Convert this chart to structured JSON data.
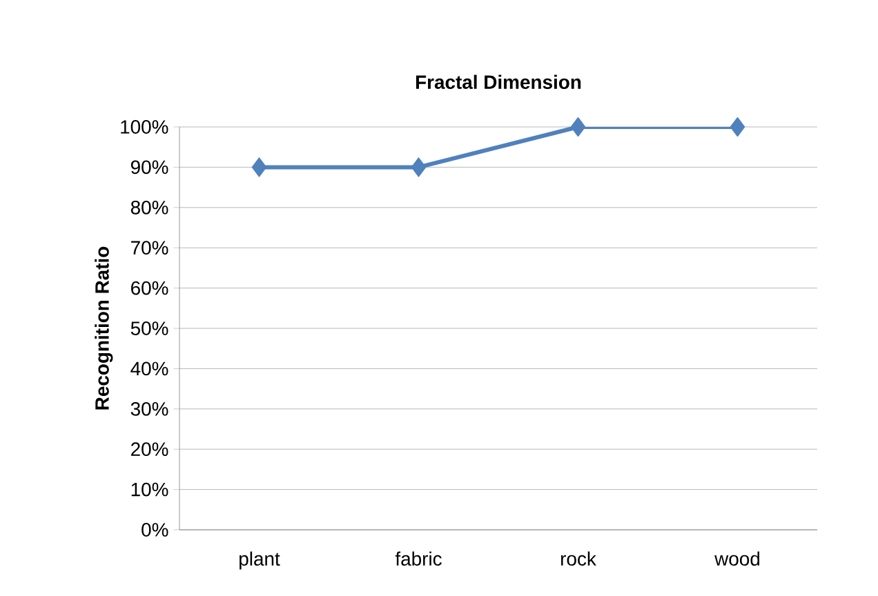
{
  "chart_data": {
    "type": "line",
    "title": "Fractal Dimension",
    "ylabel": "Recognition Ratio",
    "categories": [
      "plant",
      "fabric",
      "rock",
      "wood"
    ],
    "values": [
      90,
      90,
      100,
      100
    ],
    "color": "#4f81bd",
    "marker": "diamond",
    "grid": "y",
    "ylim": [
      0,
      100
    ],
    "yticks": [
      {
        "value": 0,
        "label": "0%"
      },
      {
        "value": 10,
        "label": "10%"
      },
      {
        "value": 20,
        "label": "20%"
      },
      {
        "value": 30,
        "label": "30%"
      },
      {
        "value": 40,
        "label": "40%"
      },
      {
        "value": 50,
        "label": "50%"
      },
      {
        "value": 60,
        "label": "60%"
      },
      {
        "value": 70,
        "label": "70%"
      },
      {
        "value": 80,
        "label": "80%"
      },
      {
        "value": 90,
        "label": "90%"
      },
      {
        "value": 100,
        "label": "100%"
      }
    ]
  }
}
